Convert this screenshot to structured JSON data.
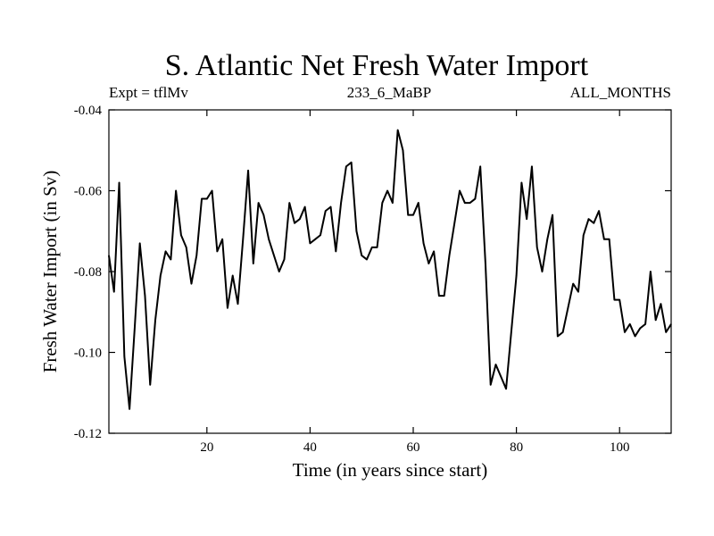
{
  "chart_data": {
    "type": "line",
    "title": "S. Atlantic Net Fresh Water Import",
    "subtitle_left": "Expt = tflMv",
    "subtitle_center": "233_6_MaBP",
    "subtitle_right": "ALL_MONTHS",
    "xlabel": "Time (in years since start)",
    "ylabel": "Fresh Water Import (in Sv)",
    "xlim": [
      1,
      110
    ],
    "ylim": [
      -0.12,
      -0.04
    ],
    "x_ticks": [
      20,
      40,
      60,
      80,
      100
    ],
    "x_tick_labels": [
      "20",
      "40",
      "60",
      "80",
      "100"
    ],
    "y_ticks": [
      -0.12,
      -0.1,
      -0.08,
      -0.06,
      -0.04
    ],
    "y_tick_labels": [
      "-0.12",
      "-0.10",
      "-0.08",
      "-0.06",
      "-0.04"
    ],
    "line_color": "#000000",
    "x": [
      1,
      2,
      3,
      4,
      5,
      6,
      7,
      8,
      9,
      10,
      11,
      12,
      13,
      14,
      15,
      16,
      17,
      18,
      19,
      20,
      21,
      22,
      23,
      24,
      25,
      26,
      27,
      28,
      29,
      30,
      31,
      32,
      33,
      34,
      35,
      36,
      37,
      38,
      39,
      40,
      41,
      42,
      43,
      44,
      45,
      46,
      47,
      48,
      49,
      50,
      51,
      52,
      53,
      54,
      55,
      56,
      57,
      58,
      59,
      60,
      61,
      62,
      63,
      64,
      65,
      66,
      67,
      68,
      69,
      70,
      71,
      72,
      73,
      74,
      75,
      76,
      77,
      78,
      79,
      80,
      81,
      82,
      83,
      84,
      85,
      86,
      87,
      88,
      89,
      90,
      91,
      92,
      93,
      94,
      95,
      96,
      97,
      98,
      99,
      100,
      101,
      102,
      103,
      104,
      105,
      106,
      107,
      108,
      109,
      110
    ],
    "values": [
      -0.076,
      -0.085,
      -0.058,
      -0.101,
      -0.114,
      -0.094,
      -0.073,
      -0.086,
      -0.108,
      -0.092,
      -0.081,
      -0.075,
      -0.077,
      -0.06,
      -0.071,
      -0.074,
      -0.083,
      -0.076,
      -0.062,
      -0.062,
      -0.06,
      -0.075,
      -0.072,
      -0.089,
      -0.081,
      -0.088,
      -0.072,
      -0.055,
      -0.078,
      -0.063,
      -0.066,
      -0.072,
      -0.076,
      -0.08,
      -0.077,
      -0.063,
      -0.068,
      -0.067,
      -0.064,
      -0.073,
      -0.072,
      -0.071,
      -0.065,
      -0.064,
      -0.075,
      -0.063,
      -0.054,
      -0.053,
      -0.07,
      -0.076,
      -0.077,
      -0.074,
      -0.074,
      -0.063,
      -0.06,
      -0.063,
      -0.045,
      -0.05,
      -0.066,
      -0.066,
      -0.063,
      -0.073,
      -0.078,
      -0.075,
      -0.086,
      -0.086,
      -0.076,
      -0.068,
      -0.06,
      -0.063,
      -0.063,
      -0.062,
      -0.054,
      -0.078,
      -0.108,
      -0.103,
      -0.106,
      -0.109,
      -0.095,
      -0.081,
      -0.058,
      -0.067,
      -0.054,
      -0.074,
      -0.08,
      -0.072,
      -0.066,
      -0.096,
      -0.095,
      -0.089,
      -0.083,
      -0.085,
      -0.071,
      -0.067,
      -0.068,
      -0.065,
      -0.072,
      -0.072,
      -0.087,
      -0.087,
      -0.095,
      -0.093,
      -0.096,
      -0.094,
      -0.093,
      -0.08,
      -0.092,
      -0.088,
      -0.095,
      -0.093
    ]
  }
}
